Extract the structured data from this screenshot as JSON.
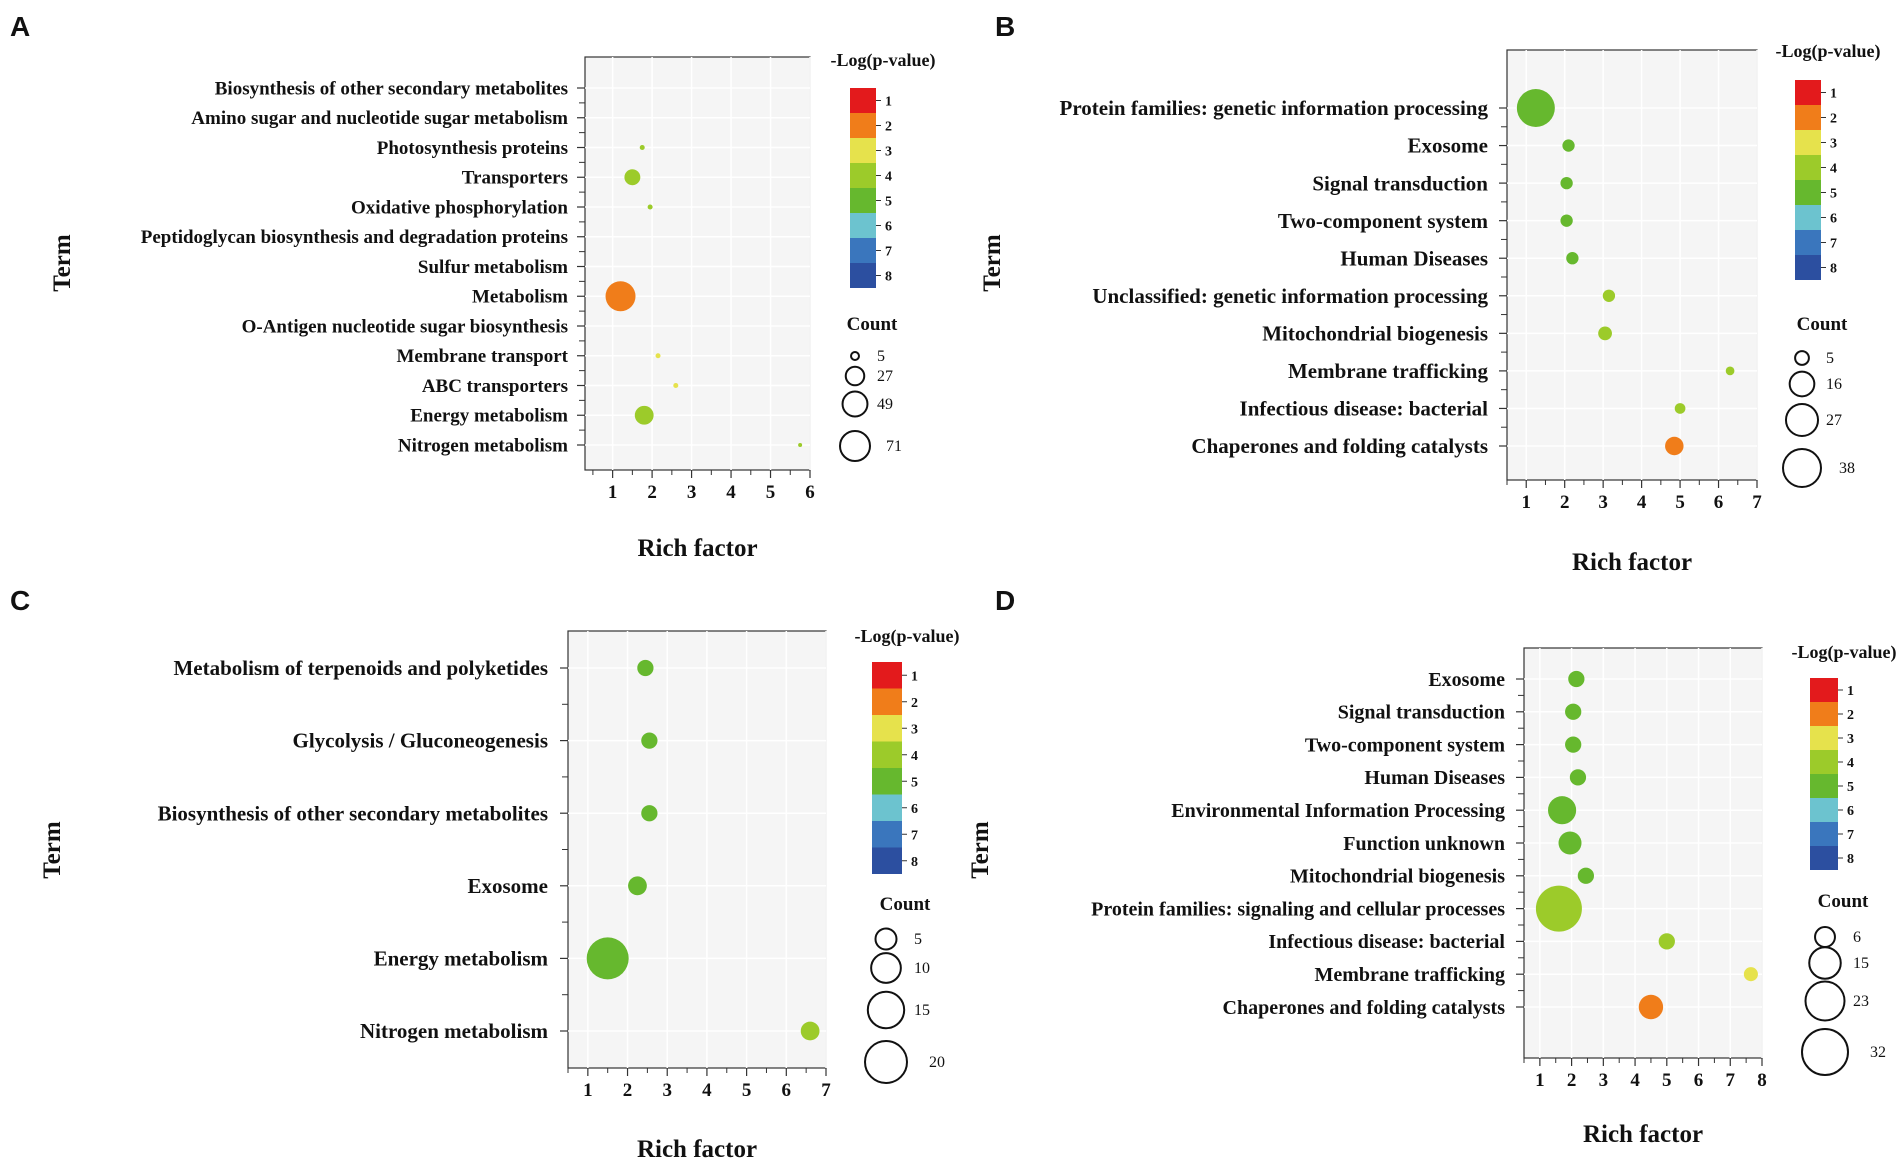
{
  "figure_panels": [
    "A",
    "B",
    "C",
    "D"
  ],
  "color_scale": {
    "title": "-Log(p-value)",
    "levels": [
      {
        "label": "1",
        "color": "#e31a1c"
      },
      {
        "label": "2",
        "color": "#f07d1a"
      },
      {
        "label": "3",
        "color": "#e6e24c"
      },
      {
        "label": "4",
        "color": "#9ccb2a"
      },
      {
        "label": "5",
        "color": "#66b82e"
      },
      {
        "label": "6",
        "color": "#6cc3cf"
      },
      {
        "label": "7",
        "color": "#3a76bd"
      },
      {
        "label": "8",
        "color": "#2c4fa0"
      }
    ]
  },
  "chart_data": [
    {
      "panel": "A",
      "type": "scatter",
      "subtype": "bubble",
      "xlabel": "Rich factor",
      "ylabel": "Term",
      "xlim": [
        0.3,
        6.0
      ],
      "xticks": [
        1,
        2,
        3,
        4,
        5,
        6
      ],
      "terms": [
        "Biosynthesis of other secondary metabolites",
        "Amino sugar and nucleotide sugar metabolism",
        "Photosynthesis proteins",
        "Transporters",
        "Oxidative phosphorylation",
        "Peptidoglycan biosynthesis and degradation proteins",
        "Sulfur metabolism",
        "Metabolism",
        "O-Antigen nucleotide sugar biosynthesis",
        "Membrane transport",
        "ABC transporters",
        "Energy metabolism",
        "Nitrogen metabolism"
      ],
      "points": [
        {
          "term": "Photosynthesis proteins",
          "x": 1.75,
          "count": 2,
          "logp": 3.8
        },
        {
          "term": "Transporters",
          "x": 1.5,
          "count": 20,
          "logp": 4.0
        },
        {
          "term": "Oxidative phosphorylation",
          "x": 1.95,
          "count": 2,
          "logp": 3.8
        },
        {
          "term": "Metabolism",
          "x": 1.2,
          "count": 71,
          "logp": 1.8
        },
        {
          "term": "Membrane transport",
          "x": 2.15,
          "count": 2,
          "logp": 3.0
        },
        {
          "term": "ABC transporters",
          "x": 2.6,
          "count": 2,
          "logp": 3.2
        },
        {
          "term": "Energy metabolism",
          "x": 1.8,
          "count": 28,
          "logp": 4.4
        },
        {
          "term": "Nitrogen metabolism",
          "x": 5.75,
          "count": 1,
          "logp": 4.0
        }
      ],
      "count_legend": {
        "title": "Count",
        "values": [
          5,
          27,
          49,
          71
        ]
      }
    },
    {
      "panel": "B",
      "type": "scatter",
      "subtype": "bubble",
      "xlabel": "Rich factor",
      "ylabel": "Term",
      "xlim": [
        0.5,
        7.0
      ],
      "xticks": [
        1,
        2,
        3,
        4,
        5,
        6,
        7
      ],
      "terms": [
        "Protein families: genetic information processing",
        "Exosome",
        "Signal transduction",
        "Two-component system",
        "Human Diseases",
        "Unclassified: genetic information processing",
        "Mitochondrial biogenesis",
        "Membrane trafficking",
        "Infectious disease: bacterial",
        "Chaperones and folding catalysts"
      ],
      "points": [
        {
          "term": "Protein families: genetic information processing",
          "x": 1.25,
          "count": 38,
          "logp": 4.6
        },
        {
          "term": "Exosome",
          "x": 2.1,
          "count": 4,
          "logp": 5.0
        },
        {
          "term": "Signal transduction",
          "x": 2.05,
          "count": 4,
          "logp": 5.0
        },
        {
          "term": "Two-component system",
          "x": 2.05,
          "count": 4,
          "logp": 5.0
        },
        {
          "term": "Human Diseases",
          "x": 2.2,
          "count": 4,
          "logp": 5.0
        },
        {
          "term": "Unclassified: genetic information processing",
          "x": 3.15,
          "count": 4,
          "logp": 4.2
        },
        {
          "term": "Mitochondrial biogenesis",
          "x": 3.05,
          "count": 5,
          "logp": 4.2
        },
        {
          "term": "Membrane trafficking",
          "x": 6.3,
          "count": 2,
          "logp": 3.8
        },
        {
          "term": "Infectious disease: bacterial",
          "x": 5.0,
          "count": 3,
          "logp": 4.0
        },
        {
          "term": "Chaperones and folding catalysts",
          "x": 4.85,
          "count": 9,
          "logp": 1.9
        }
      ],
      "count_legend": {
        "title": "Count",
        "values": [
          5,
          16,
          27,
          38
        ]
      }
    },
    {
      "panel": "C",
      "type": "scatter",
      "subtype": "bubble",
      "xlabel": "Rich factor",
      "ylabel": "Term",
      "xlim": [
        0.5,
        7.0
      ],
      "xticks": [
        1,
        2,
        3,
        4,
        5,
        6,
        7
      ],
      "terms": [
        "Metabolism of terpenoids and polyketides",
        "Glycolysis / Gluconeogenesis",
        "Biosynthesis of other secondary metabolites",
        "Exosome",
        "Energy metabolism",
        "Nitrogen metabolism"
      ],
      "points": [
        {
          "term": "Metabolism of terpenoids and polyketides",
          "x": 2.45,
          "count": 3,
          "logp": 5.0
        },
        {
          "term": "Glycolysis / Gluconeogenesis",
          "x": 2.55,
          "count": 3,
          "logp": 5.0
        },
        {
          "term": "Biosynthesis of other secondary metabolites",
          "x": 2.55,
          "count": 3,
          "logp": 5.0
        },
        {
          "term": "Exosome",
          "x": 2.25,
          "count": 4,
          "logp": 5.0
        },
        {
          "term": "Energy metabolism",
          "x": 1.5,
          "count": 20,
          "logp": 5.0
        },
        {
          "term": "Nitrogen metabolism",
          "x": 6.6,
          "count": 4,
          "logp": 4.2
        }
      ],
      "count_legend": {
        "title": "Count",
        "values": [
          5,
          10,
          15,
          20
        ]
      }
    },
    {
      "panel": "D",
      "type": "scatter",
      "subtype": "bubble",
      "xlabel": "Rich factor",
      "ylabel": "Term",
      "xlim": [
        0.5,
        8.0
      ],
      "xticks": [
        1,
        2,
        3,
        4,
        5,
        6,
        7,
        8
      ],
      "terms": [
        "Exosome",
        "Signal transduction",
        "Two-component system",
        "Human Diseases",
        "Environmental Information Processing",
        "Function unknown",
        "Mitochondrial biogenesis",
        "Protein families: signaling and cellular processes",
        "Infectious disease: bacterial",
        "Membrane trafficking",
        "Chaperones and folding catalysts"
      ],
      "points": [
        {
          "term": "Exosome",
          "x": 2.15,
          "count": 4,
          "logp": 5.0
        },
        {
          "term": "Signal transduction",
          "x": 2.05,
          "count": 4,
          "logp": 5.0
        },
        {
          "term": "Two-component system",
          "x": 2.05,
          "count": 4,
          "logp": 5.0
        },
        {
          "term": "Human Diseases",
          "x": 2.2,
          "count": 4,
          "logp": 5.0
        },
        {
          "term": "Environmental Information Processing",
          "x": 1.7,
          "count": 12,
          "logp": 5.0
        },
        {
          "term": "Function unknown",
          "x": 1.95,
          "count": 8,
          "logp": 5.0
        },
        {
          "term": "Mitochondrial biogenesis",
          "x": 2.45,
          "count": 4,
          "logp": 5.0
        },
        {
          "term": "Protein families: signaling and cellular processes",
          "x": 1.6,
          "count": 32,
          "logp": 4.3
        },
        {
          "term": "Infectious disease: bacterial",
          "x": 5.0,
          "count": 4,
          "logp": 4.0
        },
        {
          "term": "Membrane trafficking",
          "x": 7.65,
          "count": 3,
          "logp": 3.2
        },
        {
          "term": "Chaperones and folding catalysts",
          "x": 4.5,
          "count": 9,
          "logp": 2.4
        }
      ],
      "count_legend": {
        "title": "Count",
        "values": [
          6,
          15,
          23,
          32
        ]
      }
    }
  ]
}
